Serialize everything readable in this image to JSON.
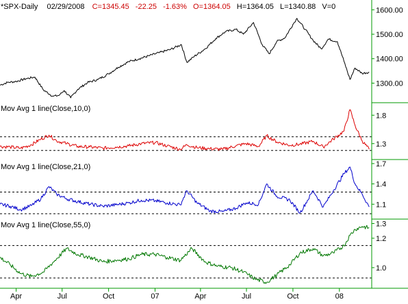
{
  "header": {
    "symbol": "*SPX-Daily",
    "date": "02/29/2008",
    "close": "C=1345.45",
    "change": "-22.25",
    "change_pct": "-1.63%",
    "open": "O=1364.05",
    "high": "H=1364.05",
    "low": "L=1340.88",
    "volume": "V=0"
  },
  "colors": {
    "price": "#000000",
    "ma10": "#dd0000",
    "ma21": "#0000cc",
    "ma55": "#007700",
    "axis": "#009900",
    "header_red": "#cc0000"
  },
  "x_axis": {
    "ticks": [
      {
        "label": "Apr",
        "date": "2006-04-01"
      },
      {
        "label": "Jul",
        "date": "2006-07-01"
      },
      {
        "label": "Oct",
        "date": "2006-10-01"
      },
      {
        "label": "07",
        "date": "2007-01-01"
      },
      {
        "label": "Apr",
        "date": "2007-04-01"
      },
      {
        "label": "Jul",
        "date": "2007-07-01"
      },
      {
        "label": "Oct",
        "date": "2007-10-01"
      },
      {
        "label": "08",
        "date": "2008-01-01"
      }
    ]
  },
  "chart_data": [
    {
      "type": "line",
      "title": "*SPX-Daily",
      "series": [
        {
          "name": "SPX",
          "color": "#000000"
        }
      ],
      "ylim": [
        1220,
        1640
      ],
      "y_ticks": [
        {
          "label": "1600.00",
          "value": 1600
        },
        {
          "label": "1500.00",
          "value": 1500
        },
        {
          "label": "1400.00",
          "value": 1400
        },
        {
          "label": "1300.00",
          "value": 1300
        }
      ],
      "reference_lines": [],
      "x": [
        "2006-02-28",
        "2006-03-15",
        "2006-04-01",
        "2006-04-20",
        "2006-05-08",
        "2006-05-25",
        "2006-06-13",
        "2006-06-25",
        "2006-07-05",
        "2006-07-18",
        "2006-08-01",
        "2006-08-20",
        "2006-09-10",
        "2006-10-01",
        "2006-10-20",
        "2006-11-10",
        "2006-12-01",
        "2006-12-20",
        "2007-01-10",
        "2007-02-01",
        "2007-02-22",
        "2007-03-05",
        "2007-03-20",
        "2007-04-10",
        "2007-05-01",
        "2007-05-20",
        "2007-06-10",
        "2007-06-25",
        "2007-07-15",
        "2007-08-01",
        "2007-08-15",
        "2007-08-30",
        "2007-09-15",
        "2007-10-01",
        "2007-10-09",
        "2007-10-25",
        "2007-11-10",
        "2007-11-26",
        "2007-12-10",
        "2007-12-28",
        "2008-01-10",
        "2008-01-22",
        "2008-02-01",
        "2008-02-15",
        "2008-02-29"
      ],
      "values": [
        1292,
        1303,
        1307,
        1318,
        1325,
        1272,
        1246,
        1250,
        1270,
        1240,
        1275,
        1302,
        1315,
        1338,
        1365,
        1388,
        1400,
        1412,
        1425,
        1438,
        1458,
        1385,
        1410,
        1440,
        1482,
        1510,
        1520,
        1500,
        1548,
        1458,
        1420,
        1470,
        1485,
        1540,
        1565,
        1520,
        1475,
        1440,
        1480,
        1470,
        1390,
        1315,
        1362,
        1340,
        1345
      ]
    },
    {
      "type": "line",
      "title": "Mov Avg 1 line(Close,10,0)",
      "series": [
        {
          "name": "Close,10",
          "color": "#dd0000"
        }
      ],
      "ylim": [
        1.02,
        2.02
      ],
      "y_ticks": [
        {
          "label": "1.8",
          "value": 1.8
        },
        {
          "label": "1.3",
          "value": 1.3
        }
      ],
      "reference_lines": [
        1.42,
        1.18
      ],
      "x": [
        "2006-02-28",
        "2006-03-20",
        "2006-04-10",
        "2006-05-01",
        "2006-05-20",
        "2006-06-05",
        "2006-06-20",
        "2006-07-10",
        "2006-08-01",
        "2006-08-25",
        "2006-09-20",
        "2006-10-15",
        "2006-11-10",
        "2006-12-05",
        "2007-01-01",
        "2007-01-25",
        "2007-02-20",
        "2007-03-05",
        "2007-03-25",
        "2007-04-20",
        "2007-05-15",
        "2007-06-10",
        "2007-06-30",
        "2007-07-25",
        "2007-08-10",
        "2007-08-30",
        "2007-09-25",
        "2007-10-15",
        "2007-11-10",
        "2007-11-30",
        "2007-12-20",
        "2008-01-10",
        "2008-01-22",
        "2008-02-01",
        "2008-02-15",
        "2008-02-29"
      ],
      "values": [
        1.25,
        1.24,
        1.22,
        1.28,
        1.38,
        1.45,
        1.35,
        1.3,
        1.25,
        1.24,
        1.22,
        1.24,
        1.26,
        1.3,
        1.32,
        1.26,
        1.2,
        1.28,
        1.23,
        1.21,
        1.2,
        1.26,
        1.3,
        1.25,
        1.44,
        1.33,
        1.27,
        1.29,
        1.34,
        1.24,
        1.38,
        1.52,
        1.9,
        1.62,
        1.35,
        1.2
      ]
    },
    {
      "type": "line",
      "title": "Mov Avg 1 line(Close,21,0)",
      "series": [
        {
          "name": "Close,21",
          "color": "#0000cc"
        }
      ],
      "ylim": [
        0.88,
        1.76
      ],
      "y_ticks": [
        {
          "label": "1.7",
          "value": 1.7
        },
        {
          "label": "1.4",
          "value": 1.4
        },
        {
          "label": "1.1",
          "value": 1.1
        }
      ],
      "reference_lines": [
        1.28,
        0.96
      ],
      "x": [
        "2006-02-28",
        "2006-03-20",
        "2006-04-10",
        "2006-05-01",
        "2006-05-20",
        "2006-06-05",
        "2006-06-20",
        "2006-07-10",
        "2006-08-01",
        "2006-08-25",
        "2006-09-20",
        "2006-10-15",
        "2006-11-10",
        "2006-12-05",
        "2007-01-01",
        "2007-01-25",
        "2007-02-20",
        "2007-03-05",
        "2007-03-25",
        "2007-04-20",
        "2007-05-15",
        "2007-06-10",
        "2007-06-30",
        "2007-07-25",
        "2007-08-10",
        "2007-08-30",
        "2007-09-25",
        "2007-10-15",
        "2007-11-10",
        "2007-11-30",
        "2007-12-20",
        "2008-01-10",
        "2008-01-22",
        "2008-02-01",
        "2008-02-15",
        "2008-02-29"
      ],
      "values": [
        1.1,
        1.07,
        1.02,
        1.08,
        1.18,
        1.36,
        1.25,
        1.18,
        1.14,
        1.1,
        1.07,
        1.09,
        1.12,
        1.16,
        1.15,
        1.12,
        1.09,
        1.3,
        1.12,
        1.0,
        0.99,
        1.04,
        1.12,
        1.1,
        1.4,
        1.22,
        1.16,
        0.97,
        1.3,
        1.06,
        1.3,
        1.55,
        1.65,
        1.4,
        1.25,
        1.06
      ]
    },
    {
      "type": "line",
      "title": "Mov Avg 1 line(Close,55,0)",
      "series": [
        {
          "name": "Close,55",
          "color": "#007700"
        }
      ],
      "ylim": [
        0.86,
        1.33
      ],
      "y_ticks": [
        {
          "label": "1.3",
          "value": 1.3
        },
        {
          "label": "1.2",
          "value": 1.2
        },
        {
          "label": "1.0",
          "value": 1.0
        }
      ],
      "reference_lines": [
        1.15,
        0.93
      ],
      "x": [
        "2006-02-28",
        "2006-03-20",
        "2006-04-10",
        "2006-05-01",
        "2006-05-25",
        "2006-06-20",
        "2006-07-10",
        "2006-08-01",
        "2006-08-25",
        "2006-09-20",
        "2006-10-15",
        "2006-11-10",
        "2006-12-05",
        "2007-01-01",
        "2007-01-25",
        "2007-02-20",
        "2007-03-15",
        "2007-04-10",
        "2007-05-05",
        "2007-06-01",
        "2007-06-25",
        "2007-07-20",
        "2007-08-10",
        "2007-08-30",
        "2007-09-25",
        "2007-10-15",
        "2007-11-10",
        "2007-11-30",
        "2007-12-20",
        "2008-01-10",
        "2008-01-22",
        "2008-02-01",
        "2008-02-15",
        "2008-02-29"
      ],
      "values": [
        1.07,
        1.02,
        0.96,
        0.94,
        0.97,
        1.06,
        1.13,
        1.09,
        1.07,
        1.04,
        1.05,
        1.06,
        1.09,
        1.09,
        1.07,
        1.05,
        1.13,
        1.04,
        1.01,
        1.0,
        0.97,
        0.92,
        0.9,
        0.95,
        1.02,
        1.1,
        1.13,
        1.08,
        1.1,
        1.15,
        1.22,
        1.26,
        1.28,
        1.27
      ]
    }
  ]
}
